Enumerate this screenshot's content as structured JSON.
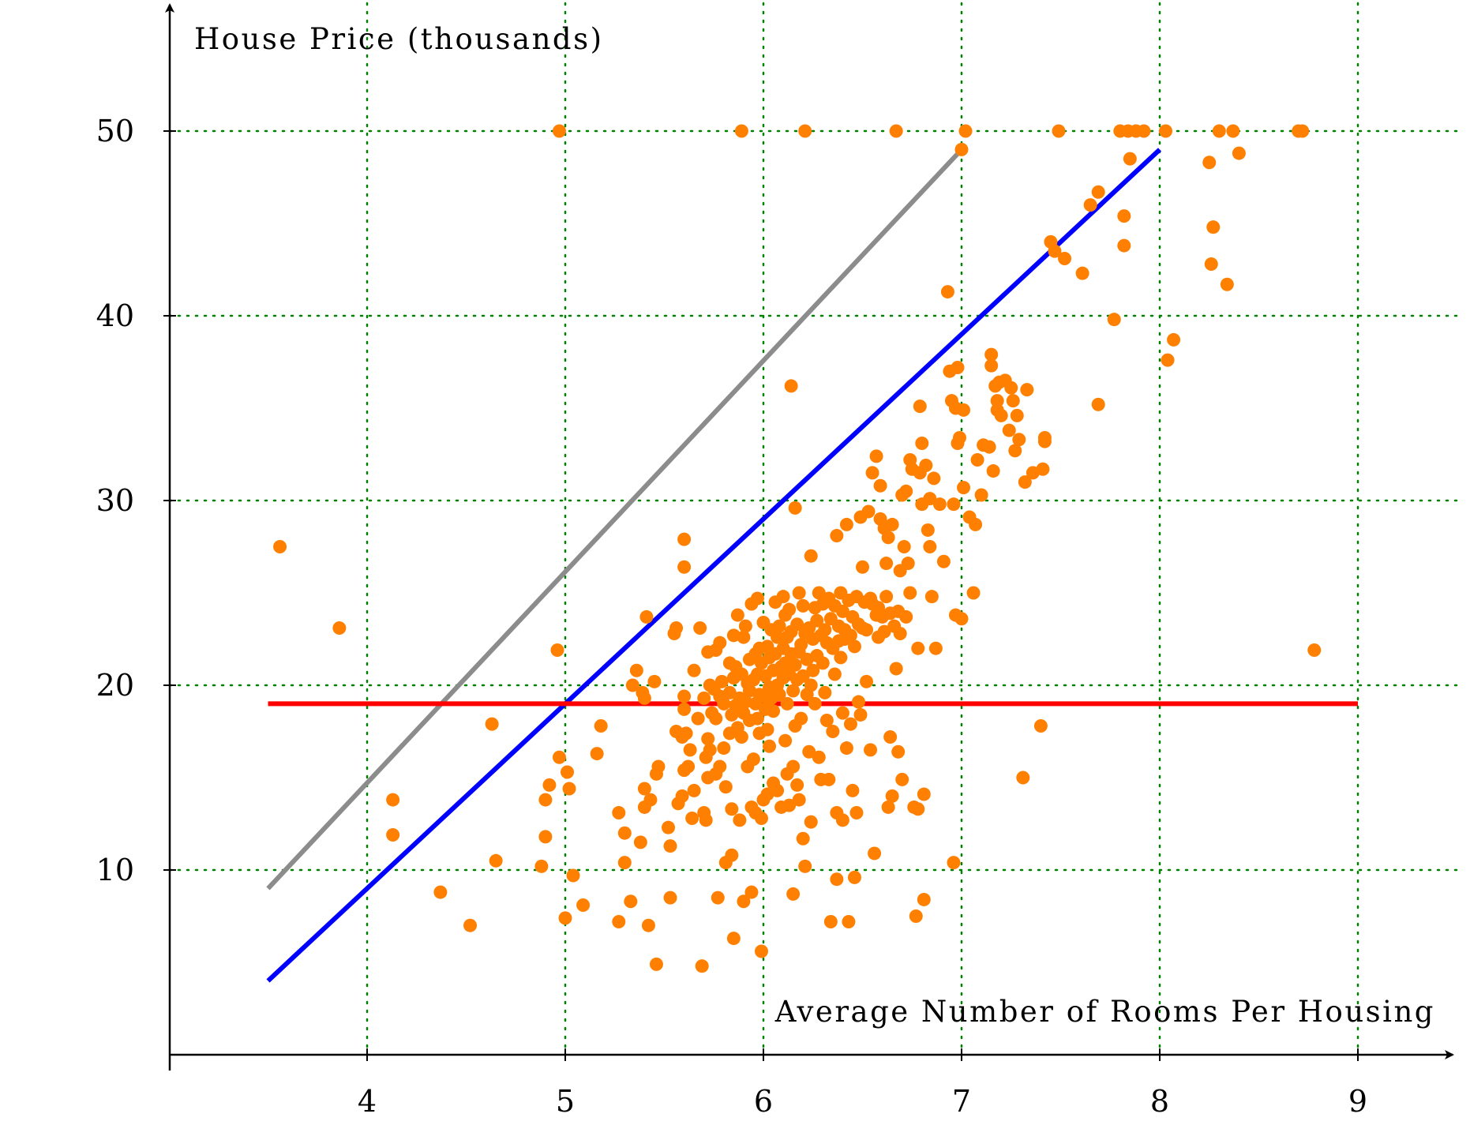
{
  "chart_data": {
    "type": "scatter",
    "xlabel": "Average Number of Rooms Per Housing",
    "ylabel": "House Price (thousands)",
    "xlim": [
      3,
      9.5
    ],
    "ylim": [
      0,
      55
    ],
    "xticks": [
      "4",
      "5",
      "6",
      "7",
      "8",
      "9"
    ],
    "yticks": [
      "10",
      "20",
      "30",
      "40",
      "50"
    ],
    "grid": true,
    "colors": {
      "points": "#ff8000",
      "grid": "#008000",
      "fit_line": "#0000ff",
      "mean_line": "#ff0000",
      "gray_line": "#8c8c8c"
    },
    "lines": [
      {
        "color": "#8c8c8c",
        "x": [
          3.5,
          7.0
        ],
        "y": [
          9.0,
          49.0
        ]
      },
      {
        "color": "#0000ff",
        "x": [
          3.5,
          8.0
        ],
        "y": [
          4.0,
          49.0
        ]
      },
      {
        "color": "#ff0000",
        "x": [
          3.5,
          9.0
        ],
        "y": [
          19.0,
          19.0
        ]
      }
    ],
    "points": [
      [
        3.56,
        27.5
      ],
      [
        3.86,
        23.1
      ],
      [
        4.13,
        13.8
      ],
      [
        4.13,
        11.9
      ],
      [
        4.37,
        8.8
      ],
      [
        4.52,
        7.0
      ],
      [
        4.63,
        17.9
      ],
      [
        4.65,
        10.5
      ],
      [
        4.88,
        10.2
      ],
      [
        4.9,
        11.8
      ],
      [
        4.9,
        13.8
      ],
      [
        4.92,
        14.6
      ],
      [
        4.96,
        21.9
      ],
      [
        4.97,
        16.1
      ],
      [
        4.97,
        50.0
      ],
      [
        5.0,
        7.4
      ],
      [
        5.01,
        15.3
      ],
      [
        5.02,
        14.4
      ],
      [
        5.04,
        9.7
      ],
      [
        5.09,
        8.1
      ],
      [
        5.16,
        16.3
      ],
      [
        5.18,
        17.8
      ],
      [
        5.27,
        13.1
      ],
      [
        5.27,
        7.2
      ],
      [
        5.3,
        12.0
      ],
      [
        5.3,
        10.4
      ],
      [
        5.33,
        8.3
      ],
      [
        5.34,
        20.0
      ],
      [
        5.36,
        20.8
      ],
      [
        5.38,
        11.5
      ],
      [
        5.39,
        19.6
      ],
      [
        5.4,
        19.3
      ],
      [
        5.4,
        14.4
      ],
      [
        5.4,
        13.4
      ],
      [
        5.41,
        23.7
      ],
      [
        5.42,
        7.0
      ],
      [
        5.43,
        13.8
      ],
      [
        5.45,
        20.2
      ],
      [
        5.46,
        15.2
      ],
      [
        5.46,
        4.9
      ],
      [
        5.47,
        15.6
      ],
      [
        5.52,
        12.3
      ],
      [
        5.53,
        11.3
      ],
      [
        5.53,
        8.5
      ],
      [
        5.55,
        22.8
      ],
      [
        5.56,
        23.1
      ],
      [
        5.56,
        17.5
      ],
      [
        5.57,
        13.6
      ],
      [
        5.59,
        17.2
      ],
      [
        5.59,
        14.0
      ],
      [
        5.6,
        19.4
      ],
      [
        5.6,
        18.7
      ],
      [
        5.6,
        15.4
      ],
      [
        5.6,
        26.4
      ],
      [
        5.6,
        27.9
      ],
      [
        5.61,
        17.4
      ],
      [
        5.62,
        15.6
      ],
      [
        5.63,
        16.5
      ],
      [
        5.64,
        12.8
      ],
      [
        5.65,
        14.3
      ],
      [
        5.65,
        20.8
      ],
      [
        5.67,
        18.2
      ],
      [
        5.68,
        23.1
      ],
      [
        5.69,
        4.8
      ],
      [
        5.7,
        19.3
      ],
      [
        5.7,
        13.1
      ],
      [
        5.71,
        16.1
      ],
      [
        5.71,
        12.7
      ],
      [
        5.72,
        21.8
      ],
      [
        5.72,
        17.1
      ],
      [
        5.72,
        15.0
      ],
      [
        5.73,
        16.5
      ],
      [
        5.73,
        20.0
      ],
      [
        5.74,
        18.5
      ],
      [
        5.75,
        19.8
      ],
      [
        5.76,
        21.9
      ],
      [
        5.76,
        18.2
      ],
      [
        5.76,
        15.2
      ],
      [
        5.77,
        8.5
      ],
      [
        5.78,
        22.3
      ],
      [
        5.78,
        19.4
      ],
      [
        5.78,
        15.6
      ],
      [
        5.79,
        20.2
      ],
      [
        5.8,
        19.0
      ],
      [
        5.8,
        16.6
      ],
      [
        5.81,
        14.5
      ],
      [
        5.81,
        10.4
      ],
      [
        5.83,
        21.2
      ],
      [
        5.83,
        19.6
      ],
      [
        5.83,
        17.4
      ],
      [
        5.84,
        18.4
      ],
      [
        5.84,
        13.3
      ],
      [
        5.84,
        10.8
      ],
      [
        5.85,
        6.3
      ],
      [
        5.85,
        22.7
      ],
      [
        5.85,
        20.4
      ],
      [
        5.86,
        21.0
      ],
      [
        5.86,
        18.9
      ],
      [
        5.87,
        17.7
      ],
      [
        5.87,
        23.8
      ],
      [
        5.88,
        19.3
      ],
      [
        5.88,
        12.7
      ],
      [
        5.89,
        50.0
      ],
      [
        5.89,
        20.6
      ],
      [
        5.89,
        17.2
      ],
      [
        5.9,
        22.6
      ],
      [
        5.9,
        18.5
      ],
      [
        5.9,
        8.3
      ],
      [
        5.91,
        19.1
      ],
      [
        5.91,
        23.2
      ],
      [
        5.92,
        20.1
      ],
      [
        5.92,
        15.6
      ],
      [
        5.93,
        19.7
      ],
      [
        5.93,
        21.4
      ],
      [
        5.93,
        18.1
      ],
      [
        5.94,
        24.4
      ],
      [
        5.94,
        13.4
      ],
      [
        5.94,
        8.8
      ],
      [
        5.95,
        20.3
      ],
      [
        5.95,
        16.0
      ],
      [
        5.96,
        21.7
      ],
      [
        5.96,
        19.0
      ],
      [
        5.96,
        13.1
      ],
      [
        5.97,
        24.7
      ],
      [
        5.97,
        20.6
      ],
      [
        5.97,
        18.2
      ],
      [
        5.98,
        19.5
      ],
      [
        5.98,
        22.0
      ],
      [
        5.98,
        17.4
      ],
      [
        5.99,
        21.2
      ],
      [
        5.99,
        12.8
      ],
      [
        5.99,
        5.6
      ],
      [
        6.0,
        23.4
      ],
      [
        6.0,
        19.4
      ],
      [
        6.0,
        13.8
      ],
      [
        6.01,
        20.5
      ],
      [
        6.01,
        18.7
      ],
      [
        6.02,
        22.1
      ],
      [
        6.02,
        17.6
      ],
      [
        6.02,
        14.1
      ],
      [
        6.03,
        21.5
      ],
      [
        6.03,
        19.9
      ],
      [
        6.03,
        16.7
      ],
      [
        6.04,
        23.0
      ],
      [
        6.04,
        19.3
      ],
      [
        6.05,
        20.8
      ],
      [
        6.05,
        18.6
      ],
      [
        6.05,
        14.7
      ],
      [
        6.06,
        24.5
      ],
      [
        6.06,
        21.7
      ],
      [
        6.06,
        19.8
      ],
      [
        6.07,
        22.6
      ],
      [
        6.07,
        20.0
      ],
      [
        6.07,
        14.3
      ],
      [
        6.08,
        23.2
      ],
      [
        6.08,
        19.5
      ],
      [
        6.09,
        21.0
      ],
      [
        6.09,
        13.4
      ],
      [
        6.1,
        24.8
      ],
      [
        6.1,
        22.0
      ],
      [
        6.1,
        20.4
      ],
      [
        6.11,
        23.8
      ],
      [
        6.11,
        21.2
      ],
      [
        6.11,
        17.0
      ],
      [
        6.12,
        22.6
      ],
      [
        6.12,
        19.0
      ],
      [
        6.12,
        15.2
      ],
      [
        6.13,
        24.1
      ],
      [
        6.13,
        20.6
      ],
      [
        6.13,
        13.5
      ],
      [
        6.14,
        22.9
      ],
      [
        6.14,
        21.7
      ],
      [
        6.14,
        36.2
      ],
      [
        6.15,
        19.7
      ],
      [
        6.15,
        15.6
      ],
      [
        6.15,
        8.7
      ],
      [
        6.16,
        21.1
      ],
      [
        6.16,
        17.8
      ],
      [
        6.16,
        29.6
      ],
      [
        6.17,
        23.3
      ],
      [
        6.17,
        20.3
      ],
      [
        6.17,
        14.6
      ],
      [
        6.18,
        25.0
      ],
      [
        6.18,
        21.8
      ],
      [
        6.18,
        13.8
      ],
      [
        6.19,
        22.2
      ],
      [
        6.19,
        18.2
      ],
      [
        6.2,
        20.5
      ],
      [
        6.2,
        24.3
      ],
      [
        6.2,
        11.7
      ],
      [
        6.21,
        22.8
      ],
      [
        6.21,
        50.0
      ],
      [
        6.21,
        10.2
      ],
      [
        6.22,
        19.5
      ],
      [
        6.22,
        21.4
      ],
      [
        6.23,
        23.1
      ],
      [
        6.23,
        16.4
      ],
      [
        6.24,
        27.0
      ],
      [
        6.24,
        20.0
      ],
      [
        6.24,
        12.6
      ],
      [
        6.25,
        22.5
      ],
      [
        6.25,
        20.8
      ],
      [
        6.26,
        24.2
      ],
      [
        6.26,
        19.0
      ],
      [
        6.27,
        21.6
      ],
      [
        6.27,
        23.5
      ],
      [
        6.28,
        25.0
      ],
      [
        6.28,
        16.1
      ],
      [
        6.29,
        22.7
      ],
      [
        6.29,
        14.9
      ],
      [
        6.3,
        24.4
      ],
      [
        6.3,
        21.2
      ],
      [
        6.31,
        23.0
      ],
      [
        6.31,
        19.6
      ],
      [
        6.32,
        22.3
      ],
      [
        6.32,
        18.1
      ],
      [
        6.33,
        24.7
      ],
      [
        6.33,
        14.9
      ],
      [
        6.34,
        23.6
      ],
      [
        6.34,
        7.2
      ],
      [
        6.35,
        22.0
      ],
      [
        6.35,
        17.5
      ],
      [
        6.36,
        24.3
      ],
      [
        6.36,
        20.6
      ],
      [
        6.37,
        28.1
      ],
      [
        6.37,
        13.1
      ],
      [
        6.37,
        9.5
      ],
      [
        6.38,
        23.2
      ],
      [
        6.38,
        22.4
      ],
      [
        6.39,
        25.0
      ],
      [
        6.39,
        21.5
      ],
      [
        6.4,
        24.0
      ],
      [
        6.4,
        12.7
      ],
      [
        6.4,
        18.5
      ],
      [
        6.41,
        23.0
      ],
      [
        6.41,
        22.5
      ],
      [
        6.42,
        28.7
      ],
      [
        6.42,
        16.6
      ],
      [
        6.43,
        24.6
      ],
      [
        6.43,
        7.2
      ],
      [
        6.44,
        22.7
      ],
      [
        6.44,
        17.9
      ],
      [
        6.45,
        23.7
      ],
      [
        6.45,
        14.3
      ],
      [
        6.46,
        22.1
      ],
      [
        6.46,
        9.6
      ],
      [
        6.47,
        24.8
      ],
      [
        6.47,
        13.1
      ],
      [
        6.48,
        23.3
      ],
      [
        6.48,
        19.1
      ],
      [
        6.49,
        29.1
      ],
      [
        6.49,
        18.4
      ],
      [
        6.5,
        26.4
      ],
      [
        6.5,
        23.1
      ],
      [
        6.51,
        24.5
      ],
      [
        6.52,
        23.0
      ],
      [
        6.52,
        20.2
      ],
      [
        6.53,
        29.4
      ],
      [
        6.54,
        24.7
      ],
      [
        6.54,
        16.5
      ],
      [
        6.55,
        31.5
      ],
      [
        6.55,
        24.4
      ],
      [
        6.56,
        10.9
      ],
      [
        6.57,
        32.4
      ],
      [
        6.57,
        23.8
      ],
      [
        6.58,
        24.2
      ],
      [
        6.58,
        22.6
      ],
      [
        6.59,
        29.0
      ],
      [
        6.59,
        30.8
      ],
      [
        6.6,
        23.7
      ],
      [
        6.61,
        28.5
      ],
      [
        6.61,
        22.9
      ],
      [
        6.62,
        26.6
      ],
      [
        6.62,
        24.8
      ],
      [
        6.63,
        28.0
      ],
      [
        6.63,
        13.4
      ],
      [
        6.64,
        23.9
      ],
      [
        6.64,
        17.2
      ],
      [
        6.65,
        28.7
      ],
      [
        6.65,
        14.0
      ],
      [
        6.66,
        23.2
      ],
      [
        6.67,
        50.0
      ],
      [
        6.67,
        20.9
      ],
      [
        6.68,
        24.0
      ],
      [
        6.68,
        16.4
      ],
      [
        6.69,
        26.2
      ],
      [
        6.69,
        22.8
      ],
      [
        6.7,
        30.3
      ],
      [
        6.7,
        14.9
      ],
      [
        6.71,
        27.5
      ],
      [
        6.72,
        23.7
      ],
      [
        6.72,
        30.5
      ],
      [
        6.73,
        26.6
      ],
      [
        6.74,
        32.2
      ],
      [
        6.74,
        25.0
      ],
      [
        6.75,
        31.7
      ],
      [
        6.76,
        13.4
      ],
      [
        6.77,
        7.5
      ],
      [
        6.78,
        22.0
      ],
      [
        6.78,
        13.3
      ],
      [
        6.79,
        35.1
      ],
      [
        6.79,
        31.5
      ],
      [
        6.8,
        33.1
      ],
      [
        6.8,
        29.8
      ],
      [
        6.81,
        8.4
      ],
      [
        6.81,
        14.1
      ],
      [
        6.82,
        31.9
      ],
      [
        6.83,
        28.4
      ],
      [
        6.84,
        30.1
      ],
      [
        6.84,
        27.5
      ],
      [
        6.85,
        24.8
      ],
      [
        6.86,
        31.2
      ],
      [
        6.87,
        22.0
      ],
      [
        6.89,
        29.8
      ],
      [
        6.91,
        26.7
      ],
      [
        6.93,
        41.3
      ],
      [
        6.94,
        37.0
      ],
      [
        6.95,
        35.4
      ],
      [
        6.96,
        10.4
      ],
      [
        6.96,
        29.8
      ],
      [
        6.97,
        35.0
      ],
      [
        6.97,
        23.8
      ],
      [
        6.98,
        37.2
      ],
      [
        6.98,
        33.1
      ],
      [
        6.99,
        33.4
      ],
      [
        7.0,
        49.0
      ],
      [
        7.0,
        23.6
      ],
      [
        7.01,
        34.9
      ],
      [
        7.01,
        30.7
      ],
      [
        7.02,
        50.0
      ],
      [
        7.04,
        29.1
      ],
      [
        7.06,
        25.0
      ],
      [
        7.07,
        28.7
      ],
      [
        7.08,
        32.2
      ],
      [
        7.1,
        30.3
      ],
      [
        7.11,
        33.0
      ],
      [
        7.14,
        32.9
      ],
      [
        7.15,
        37.9
      ],
      [
        7.15,
        37.3
      ],
      [
        7.16,
        31.6
      ],
      [
        7.17,
        36.2
      ],
      [
        7.18,
        35.4
      ],
      [
        7.18,
        34.9
      ],
      [
        7.19,
        36.4
      ],
      [
        7.2,
        34.6
      ],
      [
        7.22,
        36.5
      ],
      [
        7.24,
        33.8
      ],
      [
        7.25,
        36.1
      ],
      [
        7.26,
        35.4
      ],
      [
        7.27,
        32.7
      ],
      [
        7.28,
        34.6
      ],
      [
        7.29,
        33.3
      ],
      [
        7.31,
        15.0
      ],
      [
        7.32,
        31.0
      ],
      [
        7.33,
        36.0
      ],
      [
        7.36,
        31.5
      ],
      [
        7.4,
        17.8
      ],
      [
        7.41,
        31.7
      ],
      [
        7.42,
        33.2
      ],
      [
        7.42,
        33.4
      ],
      [
        7.45,
        44.0
      ],
      [
        7.47,
        43.5
      ],
      [
        7.49,
        50.0
      ],
      [
        7.52,
        43.1
      ],
      [
        7.61,
        42.3
      ],
      [
        7.65,
        46.0
      ],
      [
        7.69,
        46.7
      ],
      [
        7.69,
        35.2
      ],
      [
        7.77,
        39.8
      ],
      [
        7.8,
        50.0
      ],
      [
        7.82,
        45.4
      ],
      [
        7.82,
        43.8
      ],
      [
        7.84,
        50.0
      ],
      [
        7.85,
        48.5
      ],
      [
        7.88,
        50.0
      ],
      [
        7.92,
        50.0
      ],
      [
        8.03,
        50.0
      ],
      [
        8.04,
        37.6
      ],
      [
        8.07,
        38.7
      ],
      [
        8.25,
        48.3
      ],
      [
        8.26,
        42.8
      ],
      [
        8.27,
        44.8
      ],
      [
        8.3,
        50.0
      ],
      [
        8.34,
        41.7
      ],
      [
        8.37,
        50.0
      ],
      [
        8.4,
        48.8
      ],
      [
        8.7,
        50.0
      ],
      [
        8.72,
        50.0
      ],
      [
        8.78,
        21.9
      ]
    ]
  }
}
